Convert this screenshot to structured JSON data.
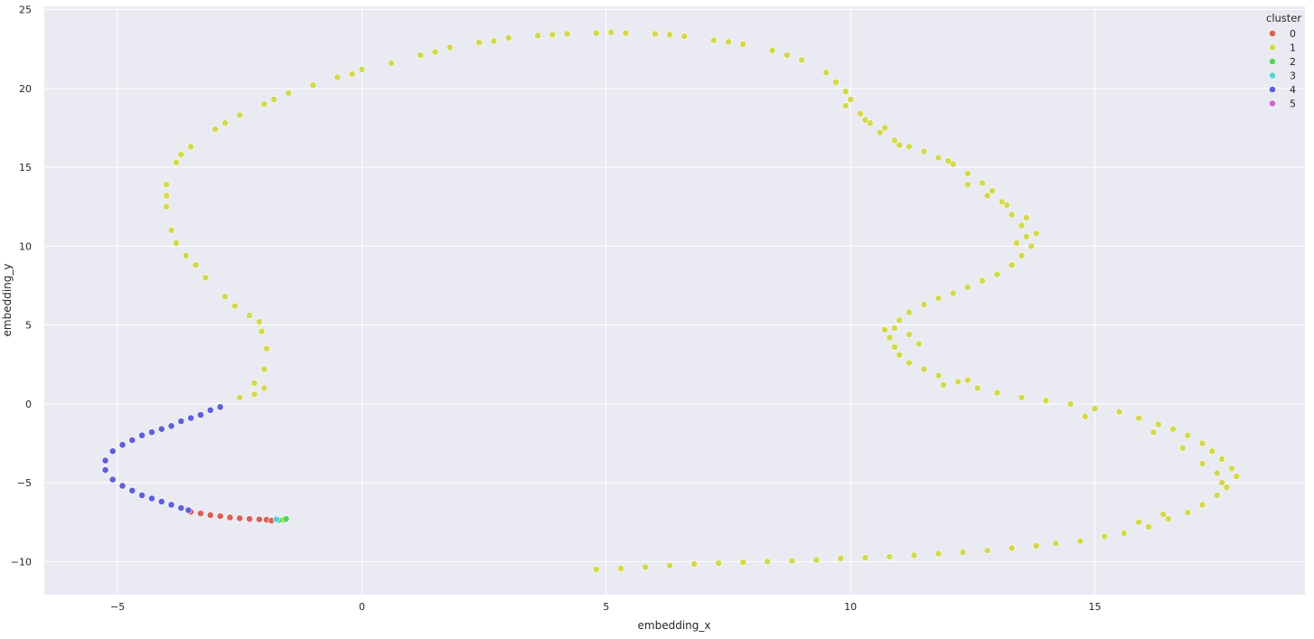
{
  "chart_data": {
    "type": "scatter",
    "title": "",
    "xlabel": "embedding_x",
    "ylabel": "embedding_y",
    "xlim": [
      -6.5,
      19.3
    ],
    "ylim": [
      -12.1,
      25.2
    ],
    "xticks": [
      -5,
      0,
      5,
      10,
      15
    ],
    "yticks": [
      -10,
      -5,
      0,
      5,
      10,
      15,
      20,
      25
    ],
    "grid": true,
    "background": "#eaeaf2",
    "legend": {
      "title": "cluster",
      "placement": "top-right"
    },
    "series": [
      {
        "name": "0",
        "color": "#db5f57",
        "points": [
          [
            -3.5,
            -6.85
          ],
          [
            -3.3,
            -6.95
          ],
          [
            -3.1,
            -7.05
          ],
          [
            -2.9,
            -7.12
          ],
          [
            -2.7,
            -7.2
          ],
          [
            -2.5,
            -7.25
          ],
          [
            -2.3,
            -7.3
          ],
          [
            -2.1,
            -7.33
          ],
          [
            -1.95,
            -7.35
          ],
          [
            -1.85,
            -7.4
          ]
        ]
      },
      {
        "name": "1",
        "color": "#d3d84f",
        "points": [
          [
            -2.9,
            -0.2
          ],
          [
            -2.5,
            0.4
          ],
          [
            -2.2,
            1.3
          ],
          [
            -2.0,
            2.2
          ],
          [
            -1.95,
            3.5
          ],
          [
            -2.05,
            4.6
          ],
          [
            -2.3,
            5.6
          ],
          [
            -2.8,
            6.8
          ],
          [
            -3.2,
            8.0
          ],
          [
            -3.6,
            9.4
          ],
          [
            -3.9,
            11.0
          ],
          [
            -4.0,
            12.5
          ],
          [
            -4.0,
            13.9
          ],
          [
            -3.8,
            15.3
          ],
          [
            -3.5,
            16.3
          ],
          [
            -3.0,
            17.4
          ],
          [
            -2.5,
            18.3
          ],
          [
            -2.0,
            19.0
          ],
          [
            -1.5,
            19.7
          ],
          [
            -1.0,
            20.2
          ],
          [
            -0.5,
            20.7
          ],
          [
            0.0,
            21.2
          ],
          [
            0.6,
            21.6
          ],
          [
            1.2,
            22.1
          ],
          [
            1.8,
            22.6
          ],
          [
            2.4,
            22.9
          ],
          [
            3.0,
            23.2
          ],
          [
            3.6,
            23.35
          ],
          [
            4.2,
            23.45
          ],
          [
            4.8,
            23.5
          ],
          [
            5.4,
            23.5
          ],
          [
            6.0,
            23.45
          ],
          [
            6.6,
            23.3
          ],
          [
            7.2,
            23.05
          ],
          [
            7.8,
            22.8
          ],
          [
            8.4,
            22.4
          ],
          [
            9.0,
            21.8
          ],
          [
            9.5,
            21.0
          ],
          [
            9.9,
            19.8
          ],
          [
            10.2,
            18.4
          ],
          [
            10.6,
            17.2
          ],
          [
            11.2,
            16.3
          ],
          [
            11.8,
            15.6
          ],
          [
            12.4,
            14.6
          ],
          [
            12.9,
            13.5
          ],
          [
            13.3,
            12.0
          ],
          [
            13.6,
            10.6
          ],
          [
            13.5,
            9.4
          ],
          [
            13.0,
            8.2
          ],
          [
            12.4,
            7.4
          ],
          [
            11.8,
            6.7
          ],
          [
            11.2,
            5.8
          ],
          [
            10.9,
            4.8
          ],
          [
            10.9,
            3.6
          ],
          [
            11.2,
            2.6
          ],
          [
            11.8,
            1.8
          ],
          [
            12.6,
            1.0
          ],
          [
            13.5,
            0.4
          ],
          [
            14.5,
            0.0
          ],
          [
            15.5,
            -0.5
          ],
          [
            16.3,
            -1.3
          ],
          [
            16.9,
            -2.0
          ],
          [
            17.4,
            -3.0
          ],
          [
            17.8,
            -4.1
          ],
          [
            17.7,
            -5.3
          ],
          [
            17.2,
            -6.4
          ],
          [
            16.5,
            -7.3
          ],
          [
            15.6,
            -8.2
          ],
          [
            14.7,
            -8.7
          ],
          [
            13.8,
            -9.0
          ],
          [
            12.8,
            -9.3
          ],
          [
            11.8,
            -9.5
          ],
          [
            10.8,
            -9.7
          ],
          [
            9.8,
            -9.8
          ],
          [
            8.8,
            -9.95
          ],
          [
            7.8,
            -10.05
          ],
          [
            6.8,
            -10.15
          ],
          [
            5.8,
            -10.35
          ],
          [
            4.8,
            -10.5
          ],
          [
            -2.2,
            0.6
          ],
          [
            -2.0,
            1.0
          ],
          [
            -2.1,
            5.2
          ],
          [
            -2.6,
            6.2
          ],
          [
            -3.4,
            8.8
          ],
          [
            -3.8,
            10.2
          ],
          [
            -4.0,
            13.2
          ],
          [
            -3.7,
            15.8
          ],
          [
            -2.8,
            17.8
          ],
          [
            -1.8,
            19.3
          ],
          [
            -0.2,
            20.9
          ],
          [
            1.5,
            22.3
          ],
          [
            2.7,
            23.0
          ],
          [
            3.9,
            23.4
          ],
          [
            5.1,
            23.55
          ],
          [
            6.3,
            23.4
          ],
          [
            7.5,
            22.95
          ],
          [
            8.7,
            22.1
          ],
          [
            9.7,
            20.4
          ],
          [
            10.0,
            19.3
          ],
          [
            10.4,
            17.8
          ],
          [
            10.9,
            16.7
          ],
          [
            11.5,
            16.0
          ],
          [
            12.1,
            15.2
          ],
          [
            12.7,
            14.0
          ],
          [
            13.1,
            12.8
          ],
          [
            13.5,
            11.3
          ],
          [
            13.7,
            10.0
          ],
          [
            13.3,
            8.8
          ],
          [
            12.7,
            7.8
          ],
          [
            12.1,
            7.0
          ],
          [
            11.5,
            6.3
          ],
          [
            11.0,
            5.3
          ],
          [
            10.8,
            4.2
          ],
          [
            11.0,
            3.1
          ],
          [
            11.5,
            2.2
          ],
          [
            12.2,
            1.4
          ],
          [
            13.0,
            0.7
          ],
          [
            14.0,
            0.2
          ],
          [
            15.0,
            -0.3
          ],
          [
            15.9,
            -0.9
          ],
          [
            16.6,
            -1.6
          ],
          [
            17.2,
            -2.5
          ],
          [
            17.6,
            -3.5
          ],
          [
            17.9,
            -4.6
          ],
          [
            17.5,
            -5.8
          ],
          [
            16.9,
            -6.9
          ],
          [
            16.1,
            -7.8
          ],
          [
            15.2,
            -8.4
          ],
          [
            14.2,
            -8.85
          ],
          [
            13.3,
            -9.15
          ],
          [
            12.3,
            -9.4
          ],
          [
            11.3,
            -9.6
          ],
          [
            10.3,
            -9.75
          ],
          [
            9.3,
            -9.9
          ],
          [
            8.3,
            -10.0
          ],
          [
            7.3,
            -10.1
          ],
          [
            6.3,
            -10.25
          ],
          [
            5.3,
            -10.45
          ],
          [
            13.2,
            12.6
          ],
          [
            13.6,
            11.8
          ],
          [
            13.4,
            10.2
          ],
          [
            13.8,
            10.8
          ],
          [
            11.2,
            4.4
          ],
          [
            11.4,
            3.8
          ],
          [
            10.7,
            4.7
          ],
          [
            12.4,
            13.9
          ],
          [
            12.8,
            13.2
          ],
          [
            17.5,
            -4.4
          ],
          [
            17.2,
            -3.8
          ],
          [
            17.6,
            -5.0
          ],
          [
            16.8,
            -2.8
          ],
          [
            16.2,
            -1.8
          ],
          [
            10.3,
            18.0
          ],
          [
            10.7,
            17.5
          ],
          [
            9.9,
            18.9
          ],
          [
            11.0,
            16.4
          ],
          [
            12.0,
            15.4
          ],
          [
            11.9,
            1.2
          ],
          [
            12.4,
            1.5
          ],
          [
            14.8,
            -0.8
          ],
          [
            16.4,
            -7.0
          ],
          [
            15.9,
            -7.5
          ]
        ]
      },
      {
        "name": "2",
        "color": "#57d356",
        "points": [
          [
            -1.6,
            -7.35
          ],
          [
            -1.7,
            -7.38
          ],
          [
            -1.55,
            -7.3
          ]
        ]
      },
      {
        "name": "3",
        "color": "#56d3d3",
        "points": [
          [
            -1.75,
            -7.32
          ]
        ]
      },
      {
        "name": "4",
        "color": "#5d5fdb",
        "points": [
          [
            -2.9,
            -0.2
          ],
          [
            -3.1,
            -0.4
          ],
          [
            -3.3,
            -0.7
          ],
          [
            -3.5,
            -0.9
          ],
          [
            -3.7,
            -1.1
          ],
          [
            -3.9,
            -1.4
          ],
          [
            -4.1,
            -1.6
          ],
          [
            -4.3,
            -1.8
          ],
          [
            -4.5,
            -2.0
          ],
          [
            -4.7,
            -2.3
          ],
          [
            -4.9,
            -2.6
          ],
          [
            -5.1,
            -3.0
          ],
          [
            -5.25,
            -3.6
          ],
          [
            -5.25,
            -4.2
          ],
          [
            -5.1,
            -4.8
          ],
          [
            -4.9,
            -5.2
          ],
          [
            -4.7,
            -5.5
          ],
          [
            -4.5,
            -5.8
          ],
          [
            -4.3,
            -6.0
          ],
          [
            -4.1,
            -6.2
          ],
          [
            -3.9,
            -6.4
          ],
          [
            -3.7,
            -6.6
          ],
          [
            -3.55,
            -6.75
          ]
        ]
      },
      {
        "name": "5",
        "color": "#d35fd2",
        "points": []
      }
    ]
  }
}
